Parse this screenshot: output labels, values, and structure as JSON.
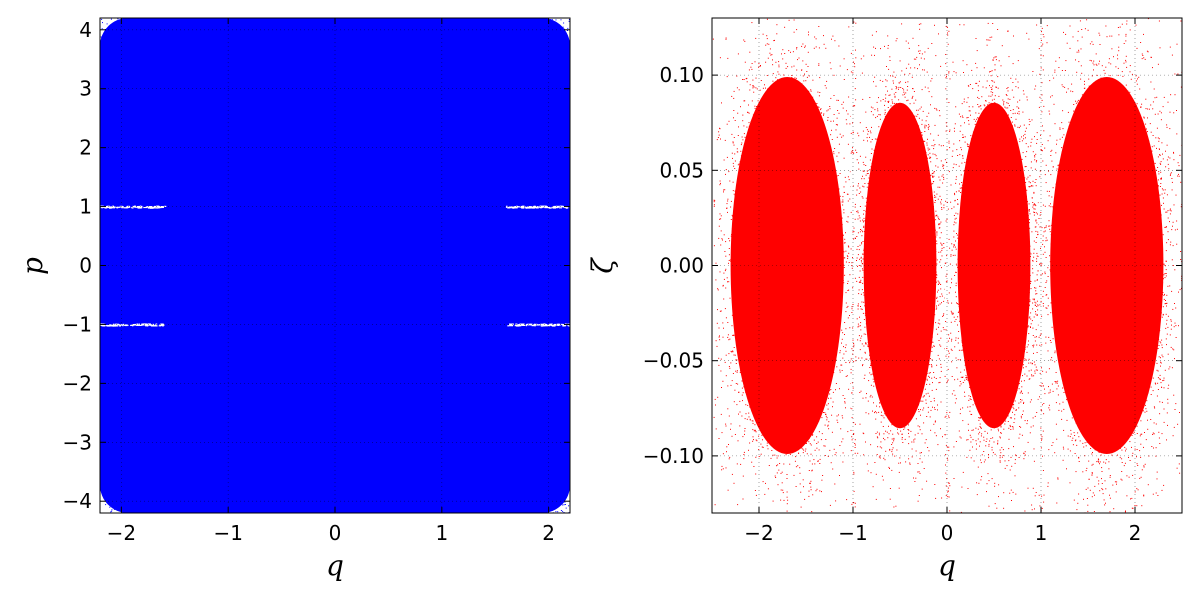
{
  "chart_data": [
    {
      "type": "scatter",
      "xlabel": "q",
      "ylabel": "p",
      "xlim": [
        -2.2,
        2.2
      ],
      "ylim": [
        -4.2,
        4.2
      ],
      "xticks": [
        -2,
        -1,
        0,
        1,
        2
      ],
      "yticks": [
        -4,
        -3,
        -2,
        -1,
        0,
        1,
        2,
        3,
        4
      ],
      "grid": true,
      "series": [
        {
          "color": "#0000ff",
          "description_fill": "dense uniform point cloud filling the phase space",
          "sparse_corners_start_abs_q": 1.6,
          "sparse_corners_start_abs_p": 3.4,
          "gap_lines_p": [
            1,
            -1
          ],
          "gap_segments_abs_q": [
            1.6,
            2.2
          ]
        }
      ]
    },
    {
      "type": "scatter",
      "xlabel": "q",
      "ylabel": "ζ",
      "xlim": [
        -2.5,
        2.5
      ],
      "ylim": [
        -0.13,
        0.13
      ],
      "xticks": [
        -2,
        -1,
        0,
        1,
        2
      ],
      "yticks": [
        -0.1,
        -0.05,
        0.0,
        0.05,
        0.1
      ],
      "ytick_labels": [
        "−0.10",
        "−0.05",
        "0.00",
        "0.05",
        "0.10"
      ],
      "xtick_labels": [
        "−2",
        "−1",
        "0",
        "1",
        "2"
      ],
      "grid": true,
      "series": [
        {
          "color": "#ff0000",
          "lobes": [
            {
              "center_q": -1.7,
              "half_width_q": 0.7,
              "half_height": 0.11
            },
            {
              "center_q": -0.5,
              "half_width_q": 0.45,
              "half_height": 0.095
            },
            {
              "center_q": 0.5,
              "half_width_q": 0.45,
              "half_height": 0.095
            },
            {
              "center_q": 1.7,
              "half_width_q": 0.7,
              "half_height": 0.11
            }
          ],
          "gaps_q": [
            -1,
            0,
            1
          ]
        }
      ]
    }
  ],
  "left_ticks_x": [
    "−2",
    "−1",
    "0",
    "1",
    "2"
  ],
  "left_ticks_y": [
    "−4",
    "−3",
    "−2",
    "−1",
    "0",
    "1",
    "2",
    "3",
    "4"
  ]
}
